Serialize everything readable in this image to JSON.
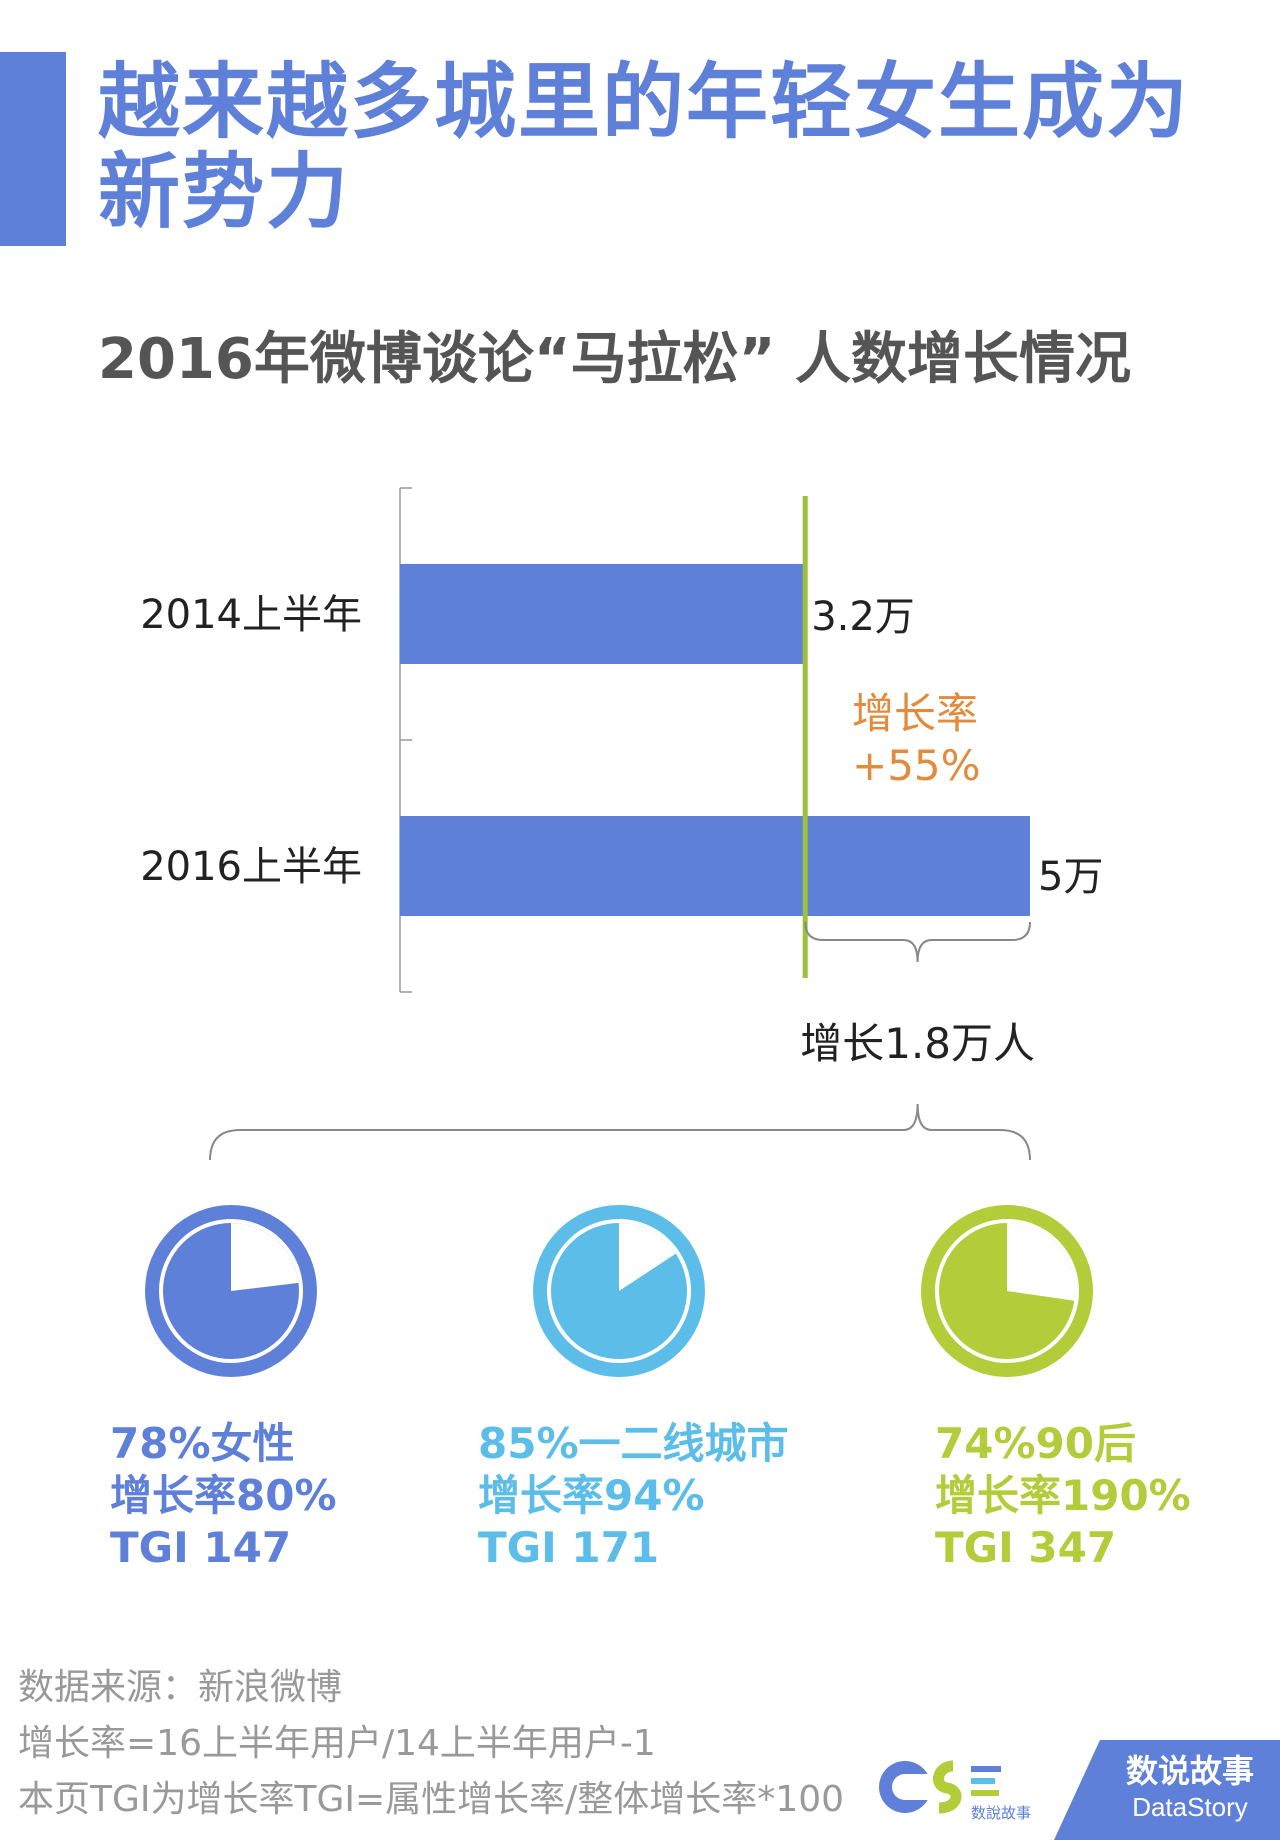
{
  "header": {
    "title": "越来越多城里的年轻女生成为新势力",
    "subtitle": "2016年微博谈论“马拉松” 人数增长情况"
  },
  "colors": {
    "blue": "#5f80d8",
    "light_blue": "#5bbde8",
    "green": "#b2cc3a",
    "orange": "#e38b3c",
    "green_line": "#9dc23a"
  },
  "chart_data": {
    "type": "bar",
    "orientation": "horizontal",
    "categories": [
      "2014上半年",
      "2016上半年"
    ],
    "values": [
      3.2,
      5
    ],
    "value_labels": [
      "3.2万",
      "5万"
    ],
    "unit": "万",
    "growth_label": "增长率",
    "growth_rate": "+55%",
    "increase_label": "增长1.8万人"
  },
  "segments": [
    {
      "color_key": "blue",
      "share": 0.78,
      "line1": "78%女性",
      "line2": "增长率80%",
      "line3": "TGI 147",
      "icon": "pie-chart-icon"
    },
    {
      "color_key": "light_blue",
      "share": 0.85,
      "line1": "85%一二线城市",
      "line2": "增长率94%",
      "line3": "TGI 171",
      "icon": "pie-chart-icon"
    },
    {
      "color_key": "green",
      "share": 0.74,
      "line1": "74%90后",
      "line2": "增长率190%",
      "line3": "TGI 347",
      "icon": "pie-chart-icon"
    }
  ],
  "footer": {
    "source": "数据来源：新浪微博",
    "formula": "增长率=16上半年用户/14上半年用户-1",
    "note": "本页TGI为增长率TGI=属性增长率/整体增长率*100"
  },
  "brand": {
    "logo_text": "数說故事",
    "badge_cn": "数说故事",
    "badge_en": "DataStory"
  }
}
